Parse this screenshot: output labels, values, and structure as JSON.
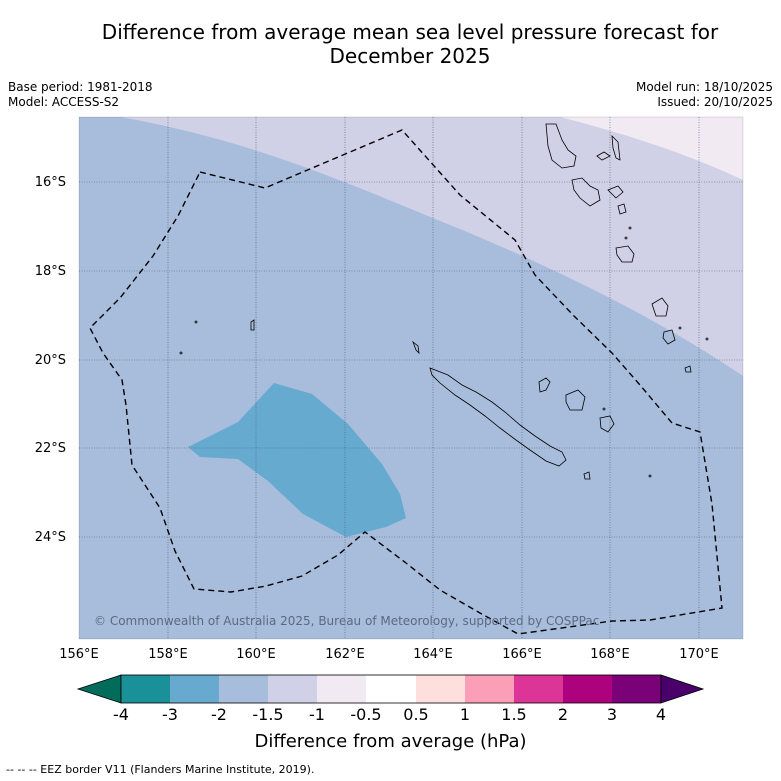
{
  "title": {
    "line1": "Difference from average mean sea level pressure forecast for",
    "line2": "December 2025"
  },
  "meta": {
    "base_period": "Base period: 1981-2018",
    "model": "Model: ACCESS-S2",
    "model_run": "Model run: 18/10/2025",
    "issued": "Issued: 20/10/2025"
  },
  "map": {
    "latitude_labels": [
      "16°S",
      "18°S",
      "20°S",
      "22°S",
      "24°S"
    ],
    "longitude_labels": [
      "156°E",
      "158°E",
      "160°E",
      "162°E",
      "164°E",
      "166°E",
      "168°E",
      "170°E"
    ],
    "copyright": "© Commonwealth of Australia 2025, Bureau of Meteorology, supported by COSPPac",
    "colors": {
      "minus2_to_minus1_5": "#a8bcdc",
      "minus1_5_to_minus1": "#d0d0e6",
      "minus1_to_minus0_5": "#f2eaf2",
      "minus3_to_minus2": "#66aad0",
      "grid": "#4a5a78",
      "eez_line": "#000000"
    }
  },
  "colorbar": {
    "tick_labels": [
      "-4",
      "-3",
      "-2",
      "-1.5",
      "-1",
      "-0.5",
      "0.5",
      "1",
      "1.5",
      "2",
      "3",
      "4"
    ],
    "bins": [
      {
        "range": "-4 to -3",
        "color": "#1a9099"
      },
      {
        "range": "-3 to -2",
        "color": "#67a9cf"
      },
      {
        "range": "-2 to -1.5",
        "color": "#a6bddb"
      },
      {
        "range": "-1.5 to -1",
        "color": "#d0d1e6"
      },
      {
        "range": "-1 to -0.5",
        "color": "#f2eaf2"
      },
      {
        "range": "-0.5 to 0.5",
        "color": "#ffffff"
      },
      {
        "range": "0.5 to 1",
        "color": "#fde0dd"
      },
      {
        "range": "1 to 1.5",
        "color": "#fa9fb5"
      },
      {
        "range": "1.5 to 2",
        "color": "#dd3497"
      },
      {
        "range": "2 to 3",
        "color": "#ae017e"
      },
      {
        "range": "3 to 4",
        "color": "#7a0177"
      }
    ],
    "low_extend_color": "#016c59",
    "high_extend_color": "#49006a",
    "label": "Difference from average (hPa)"
  },
  "footer": "--  --  -- EEZ border V11 (Flanders Marine Institute, 2019)."
}
